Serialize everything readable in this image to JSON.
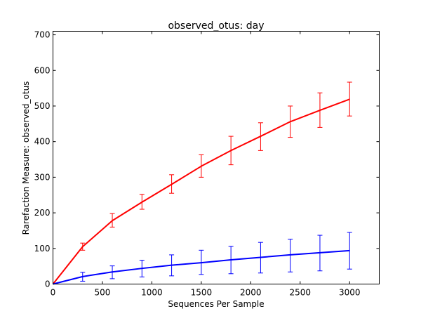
{
  "chart_data": {
    "type": "line",
    "title": "observed_otus: day",
    "xlabel": "Sequences Per Sample",
    "ylabel": "Rarefaction Measure: observed_otus",
    "xlim": [
      0,
      3300
    ],
    "ylim": [
      0,
      710
    ],
    "xticks": [
      0,
      500,
      1000,
      1500,
      2000,
      2500,
      3000
    ],
    "yticks": [
      0,
      100,
      200,
      300,
      400,
      500,
      600,
      700
    ],
    "grid": false,
    "legend": "none",
    "series": [
      {
        "color": "#ff0000",
        "x": [
          0,
          300,
          600,
          900,
          1200,
          1500,
          1800,
          2100,
          2400,
          2700,
          3000
        ],
        "y": [
          0,
          105,
          178,
          230,
          280,
          331,
          375,
          415,
          456,
          488,
          519
        ],
        "err_low": [
          0,
          95,
          160,
          210,
          255,
          300,
          335,
          375,
          412,
          440,
          472
        ],
        "err_high": [
          0,
          115,
          198,
          252,
          307,
          363,
          415,
          453,
          500,
          537,
          567
        ]
      },
      {
        "color": "#0000ff",
        "x": [
          0,
          300,
          600,
          900,
          1200,
          1500,
          1800,
          2100,
          2400,
          2700,
          3000
        ],
        "y": [
          0,
          21,
          34,
          44,
          53,
          60,
          68,
          75,
          82,
          88,
          94
        ],
        "err_low": [
          0,
          8,
          15,
          20,
          23,
          27,
          29,
          31,
          34,
          37,
          42
        ],
        "err_high": [
          0,
          33,
          51,
          67,
          82,
          95,
          106,
          117,
          126,
          137,
          145
        ]
      }
    ]
  }
}
